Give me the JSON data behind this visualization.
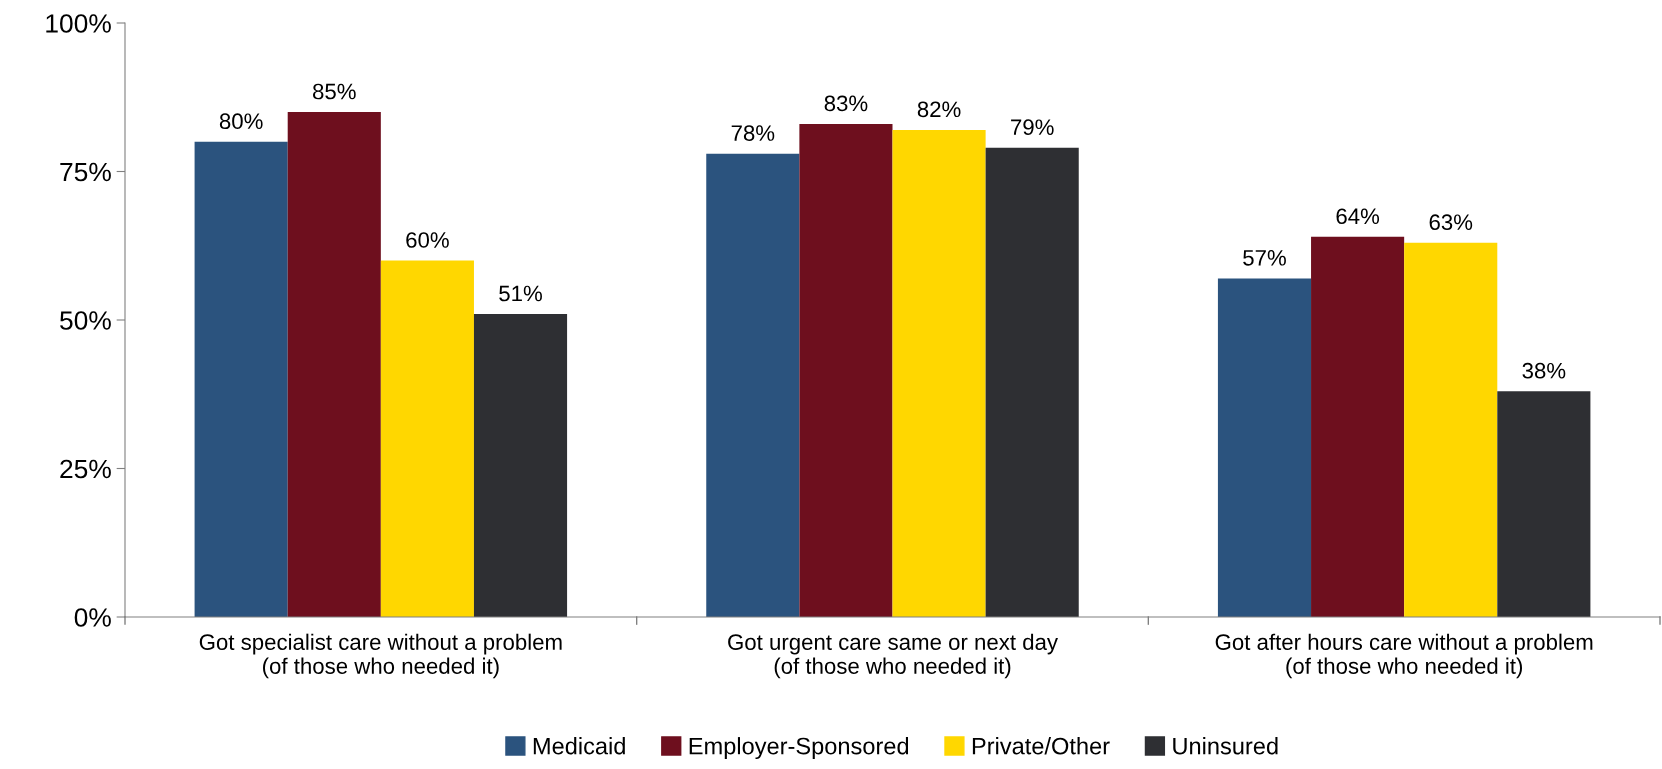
{
  "chart_data": {
    "type": "bar",
    "categories": [
      "Got specialist care without a problem\n(of those who needed it)",
      "Got urgent care same or next day\n(of those who needed it)",
      "Got after hours care without a problem\n(of those who needed it)"
    ],
    "series": [
      {
        "name": "Medicaid",
        "color": "#2b537e",
        "values": [
          80,
          78,
          57
        ],
        "value_labels": [
          "80%",
          "78%",
          "57%"
        ]
      },
      {
        "name": "Employer-Sponsored",
        "color": "#6e0f1e",
        "values": [
          85,
          83,
          64
        ],
        "value_labels": [
          "85%",
          "83%",
          "64%"
        ]
      },
      {
        "name": "Private/Other",
        "color": "#ffd700",
        "values": [
          60,
          82,
          63
        ],
        "value_labels": [
          "60%",
          "82%",
          "63%"
        ]
      },
      {
        "name": "Uninsured",
        "color": "#2e2f33",
        "values": [
          51,
          79,
          38
        ],
        "value_labels": [
          "51%",
          "79%",
          "38%"
        ]
      }
    ],
    "ylim": [
      0,
      100
    ],
    "yticks": [
      {
        "value": 0,
        "label": "0%"
      },
      {
        "value": 25,
        "label": "25%"
      },
      {
        "value": 50,
        "label": "50%"
      },
      {
        "value": 75,
        "label": "75%"
      },
      {
        "value": 100,
        "label": "100%"
      }
    ],
    "grid": false,
    "legend": "bottom"
  }
}
